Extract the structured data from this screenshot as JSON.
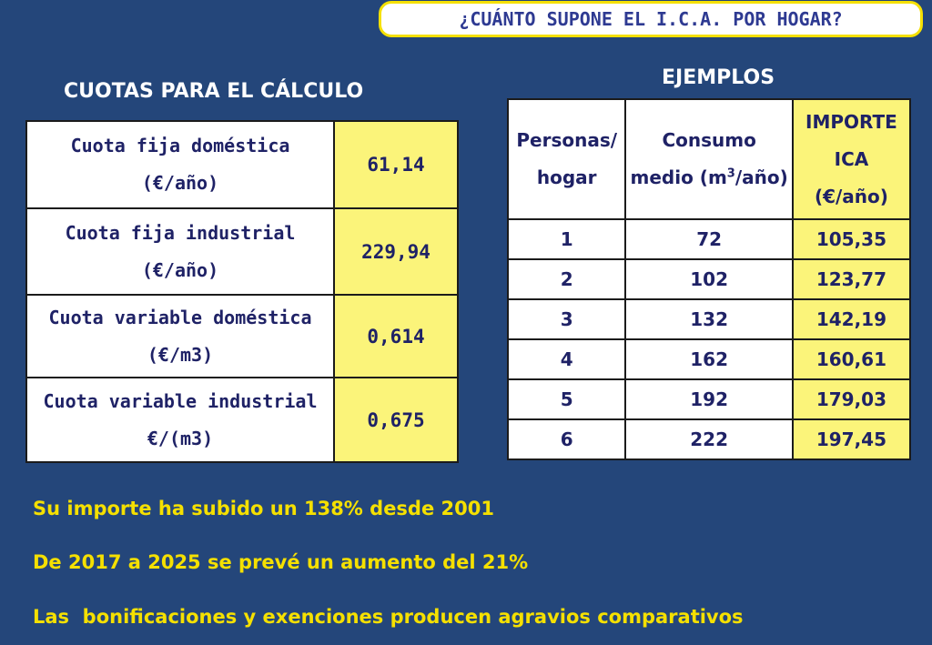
{
  "title": "¿CUÁNTO SUPONE EL I.C.A. POR HOGAR?",
  "cuotas": {
    "heading": "CUOTAS PARA EL CÁLCULO",
    "rows": [
      {
        "label_line1": "Cuota fija doméstica",
        "label_line2": "(€/año)",
        "value": "61,14"
      },
      {
        "label_line1": "Cuota fija industrial",
        "label_line2": "(€/año)",
        "value": "229,94"
      },
      {
        "label_line1": "Cuota variable doméstica",
        "label_line2": "(€/m3)",
        "value": "0,614"
      },
      {
        "label_line1": "Cuota variable industrial",
        "label_line2": "€/(m3)",
        "value": "0,675"
      }
    ]
  },
  "ejemplos": {
    "heading": "EJEMPLOS",
    "headers": {
      "personas_line1": "Personas/",
      "personas_line2": "hogar",
      "consumo_line1": "Consumo",
      "consumo_line2_pre": "medio (m",
      "consumo_sup": "3",
      "consumo_line2_post": "/año)",
      "importe_line1": "IMPORTE",
      "importe_line2": "ICA",
      "importe_line3": "(€/año)"
    },
    "rows": [
      {
        "personas": "1",
        "consumo": "72",
        "importe": "105,35"
      },
      {
        "personas": "2",
        "consumo": "102",
        "importe": "123,77"
      },
      {
        "personas": "3",
        "consumo": "132",
        "importe": "142,19"
      },
      {
        "personas": "4",
        "consumo": "162",
        "importe": "160,61"
      },
      {
        "personas": "5",
        "consumo": "192",
        "importe": "179,03"
      },
      {
        "personas": "6",
        "consumo": "222",
        "importe": "197,45"
      }
    ]
  },
  "notes": [
    "Su importe ha subido un 138% desde 2001",
    "De 2017 a 2025 se prevé un aumento del 21%",
    "Las  bonificaciones y exenciones producen agravios comparativos"
  ]
}
